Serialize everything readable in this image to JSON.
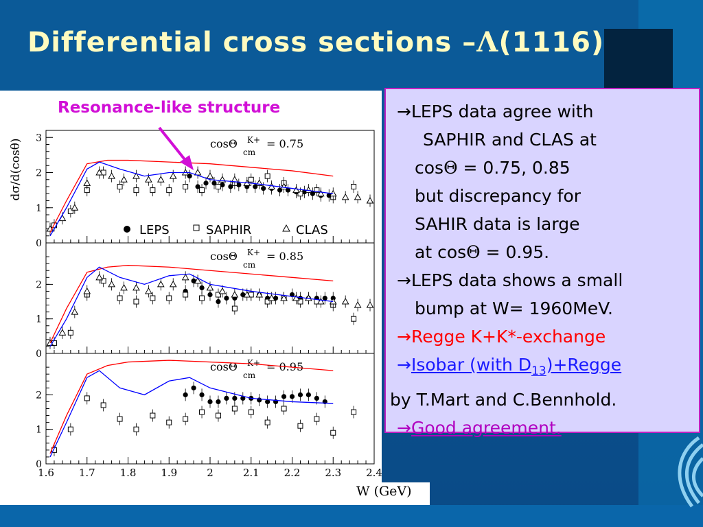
{
  "slide": {
    "title_prefix": "Differential cross sections –",
    "title_lambda": "Λ",
    "title_suffix": "(1116)",
    "annotation": "Resonance-like structure",
    "x_unit_label": "W (GeV)",
    "y_axis_label": "dσ/d(cosθ)",
    "legend": {
      "leps": "LEPS",
      "saphir": "SAPHIR",
      "clas": "CLAS"
    }
  },
  "textbox": {
    "lines": [
      {
        "arrow": "→",
        "text": "LEPS data agree with"
      },
      {
        "text": "SAPHIR and CLAS at"
      },
      {
        "text": "cos",
        "sym": "Θ",
        "text2": " = 0.75, 0.85"
      },
      {
        "text": "but discrepancy for"
      },
      {
        "text": "SAHIR data is large"
      },
      {
        "text": "at cos",
        "sym": "Θ",
        "text2": " = 0.95."
      },
      {
        "arrow": "→",
        "text": "LEPS data shows a small"
      },
      {
        "text": "bump at W= 1960MeV."
      },
      {
        "arrow": "→",
        "text": "Regge K+K*-exchange"
      },
      {
        "arrow": "→",
        "text": "Isobar (with D",
        "sub": "13",
        "text2": ")+Regge"
      },
      {
        "text": "by T.Mart and C.Bennhold."
      },
      {
        "arrow": "→",
        "text": "Good agreement."
      }
    ]
  },
  "colors": {
    "regge": "#ff0000",
    "isobar": "#0000ff",
    "title": "#fffbc0",
    "annotation": "#d10fd6",
    "box_bg": "#d9d4ff"
  },
  "chart_data": [
    {
      "type": "scatter",
      "panel_label": "cosΘ",
      "panel_sub": "cm",
      "panel_sup": "K+",
      "panel_value": "= 0.75",
      "xlim": [
        1.6,
        2.4
      ],
      "ylim": [
        0,
        3.2
      ],
      "yticks": [
        "0",
        "1",
        "2",
        "3"
      ],
      "series": [
        {
          "name": "LEPS",
          "x": [
            1.95,
            1.97,
            1.99,
            2.01,
            2.03,
            2.05,
            2.07,
            2.09,
            2.11,
            2.13,
            2.15,
            2.17,
            2.19,
            2.21,
            2.23,
            2.25,
            2.27,
            2.29
          ],
          "y": [
            1.9,
            1.6,
            1.7,
            1.7,
            1.65,
            1.6,
            1.65,
            1.6,
            1.6,
            1.55,
            1.55,
            1.5,
            1.5,
            1.45,
            1.45,
            1.4,
            1.35,
            1.35
          ]
        },
        {
          "name": "SAPHIR",
          "x": [
            1.62,
            1.66,
            1.7,
            1.74,
            1.78,
            1.82,
            1.86,
            1.9,
            1.94,
            1.98,
            2.02,
            2.06,
            2.1,
            2.14,
            2.18,
            2.22,
            2.26,
            2.3,
            2.35
          ],
          "y": [
            0.5,
            0.9,
            1.5,
            2.0,
            1.6,
            1.5,
            1.5,
            1.5,
            1.6,
            1.5,
            1.6,
            1.7,
            1.8,
            1.9,
            1.7,
            1.4,
            1.5,
            1.3,
            1.6
          ]
        },
        {
          "name": "CLAS",
          "x": [
            1.61,
            1.64,
            1.67,
            1.7,
            1.73,
            1.76,
            1.79,
            1.82,
            1.85,
            1.88,
            1.91,
            1.94,
            1.97,
            2.0,
            2.03,
            2.06,
            2.09,
            2.12,
            2.15,
            2.18,
            2.21,
            2.24,
            2.27,
            2.3,
            2.33,
            2.36,
            2.39
          ],
          "y": [
            0.4,
            0.7,
            1.0,
            1.7,
            2.0,
            1.9,
            1.8,
            1.9,
            1.8,
            1.8,
            1.9,
            2.0,
            2.0,
            1.9,
            1.8,
            1.8,
            1.7,
            1.7,
            1.6,
            1.6,
            1.5,
            1.5,
            1.4,
            1.4,
            1.3,
            1.3,
            1.2
          ]
        },
        {
          "name": "Regge",
          "x": [
            1.61,
            1.65,
            1.7,
            1.75,
            1.8,
            1.9,
            2.0,
            2.1,
            2.2,
            2.3
          ],
          "y": [
            0.3,
            1.2,
            2.25,
            2.35,
            2.35,
            2.3,
            2.25,
            2.15,
            2.05,
            1.9
          ]
        },
        {
          "name": "Isobar",
          "x": [
            1.61,
            1.65,
            1.7,
            1.73,
            1.78,
            1.84,
            1.9,
            1.95,
            2.0,
            2.1,
            2.2,
            2.3
          ],
          "y": [
            0.2,
            1.0,
            2.1,
            2.3,
            2.1,
            1.9,
            2.0,
            2.0,
            1.8,
            1.7,
            1.55,
            1.4
          ]
        }
      ]
    },
    {
      "type": "scatter",
      "panel_label": "cosΘ",
      "panel_sub": "cm",
      "panel_sup": "K+",
      "panel_value": "= 0.85",
      "xlim": [
        1.6,
        2.4
      ],
      "ylim": [
        0,
        3.2
      ],
      "yticks": [
        "0",
        "1",
        "2"
      ],
      "series": [
        {
          "name": "LEPS",
          "x": [
            1.94,
            1.96,
            1.98,
            2.0,
            2.02,
            2.04,
            2.06,
            2.08,
            2.1,
            2.12,
            2.14,
            2.16,
            2.18,
            2.2,
            2.22,
            2.24,
            2.26,
            2.28,
            2.3
          ],
          "y": [
            1.8,
            2.1,
            1.9,
            1.7,
            1.5,
            1.6,
            1.6,
            1.7,
            1.7,
            1.7,
            1.6,
            1.6,
            1.6,
            1.7,
            1.6,
            1.6,
            1.6,
            1.6,
            1.6
          ]
        },
        {
          "name": "SAPHIR",
          "x": [
            1.62,
            1.66,
            1.7,
            1.74,
            1.78,
            1.82,
            1.86,
            1.9,
            1.94,
            1.98,
            2.02,
            2.06,
            2.1,
            2.14,
            2.18,
            2.22,
            2.26,
            2.3,
            2.35
          ],
          "y": [
            0.3,
            0.6,
            1.7,
            2.1,
            1.6,
            1.5,
            1.6,
            1.6,
            1.7,
            1.6,
            1.7,
            1.3,
            1.7,
            1.5,
            1.6,
            1.5,
            1.5,
            1.4,
            1.0
          ]
        },
        {
          "name": "CLAS",
          "x": [
            1.61,
            1.64,
            1.67,
            1.7,
            1.73,
            1.76,
            1.79,
            1.82,
            1.85,
            1.88,
            1.91,
            1.94,
            1.97,
            2.0,
            2.03,
            2.06,
            2.09,
            2.12,
            2.15,
            2.18,
            2.21,
            2.24,
            2.27,
            2.3,
            2.33,
            2.36,
            2.39
          ],
          "y": [
            0.3,
            0.6,
            1.2,
            1.8,
            2.2,
            2.0,
            1.9,
            1.9,
            1.8,
            2.0,
            2.0,
            2.2,
            2.1,
            1.9,
            1.8,
            1.7,
            1.7,
            1.7,
            1.6,
            1.6,
            1.6,
            1.6,
            1.5,
            1.5,
            1.5,
            1.4,
            1.4
          ]
        },
        {
          "name": "Regge",
          "x": [
            1.61,
            1.65,
            1.7,
            1.75,
            1.8,
            1.9,
            2.0,
            2.1,
            2.2,
            2.3
          ],
          "y": [
            0.3,
            1.3,
            2.35,
            2.5,
            2.55,
            2.5,
            2.4,
            2.3,
            2.2,
            2.1
          ]
        },
        {
          "name": "Isobar",
          "x": [
            1.61,
            1.65,
            1.7,
            1.73,
            1.78,
            1.84,
            1.9,
            1.95,
            2.0,
            2.1,
            2.2,
            2.3
          ],
          "y": [
            0.2,
            1.0,
            2.2,
            2.5,
            2.2,
            2.0,
            2.25,
            2.3,
            2.0,
            1.8,
            1.65,
            1.5
          ]
        }
      ]
    },
    {
      "type": "scatter",
      "panel_label": "cosΘ",
      "panel_sub": "cm",
      "panel_sup": "K+",
      "panel_value": "= 0.95",
      "xlim": [
        1.6,
        2.4
      ],
      "ylim": [
        0,
        3.2
      ],
      "yticks": [
        "0",
        "1",
        "2"
      ],
      "series": [
        {
          "name": "LEPS",
          "x": [
            1.94,
            1.96,
            1.98,
            2.0,
            2.02,
            2.04,
            2.06,
            2.08,
            2.1,
            2.12,
            2.14,
            2.16,
            2.18,
            2.2,
            2.22,
            2.24,
            2.26,
            2.28
          ],
          "y": [
            2.0,
            2.2,
            2.0,
            1.8,
            1.8,
            1.9,
            1.9,
            1.9,
            1.9,
            1.85,
            1.8,
            1.8,
            1.95,
            1.95,
            2.0,
            2.0,
            1.9,
            1.8
          ]
        },
        {
          "name": "SAPHIR",
          "x": [
            1.62,
            1.66,
            1.7,
            1.74,
            1.78,
            1.82,
            1.86,
            1.9,
            1.94,
            1.98,
            2.02,
            2.06,
            2.1,
            2.14,
            2.18,
            2.22,
            2.26,
            2.3,
            2.35
          ],
          "y": [
            0.4,
            1.0,
            1.9,
            1.7,
            1.3,
            1.0,
            1.4,
            1.2,
            1.3,
            1.5,
            1.4,
            1.6,
            1.5,
            1.2,
            1.6,
            1.1,
            1.3,
            0.9,
            1.5
          ]
        },
        {
          "name": "Regge",
          "x": [
            1.61,
            1.65,
            1.7,
            1.75,
            1.8,
            1.9,
            2.0,
            2.1,
            2.2,
            2.3
          ],
          "y": [
            0.3,
            1.4,
            2.6,
            2.85,
            2.95,
            3.0,
            2.95,
            2.9,
            2.8,
            2.7
          ]
        },
        {
          "name": "Isobar",
          "x": [
            1.61,
            1.65,
            1.7,
            1.73,
            1.78,
            1.84,
            1.9,
            1.95,
            2.0,
            2.1,
            2.2,
            2.3
          ],
          "y": [
            0.2,
            1.2,
            2.5,
            2.7,
            2.2,
            2.0,
            2.4,
            2.5,
            2.2,
            1.9,
            1.8,
            1.75
          ]
        }
      ]
    }
  ],
  "x_ticks": [
    "1.6",
    "1.7",
    "1.8",
    "1.9",
    "2",
    "2.1",
    "2.2",
    "2.3",
    "2.4"
  ]
}
